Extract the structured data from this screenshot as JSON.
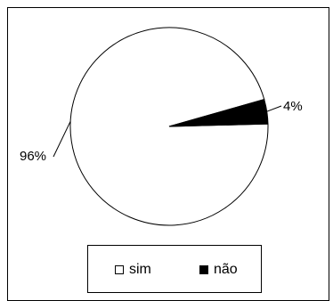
{
  "chart_data": {
    "type": "pie",
    "slices": [
      {
        "label": "sim",
        "value": 96,
        "display": "96%",
        "color": "#ffffff"
      },
      {
        "label": "não",
        "value": 4,
        "display": "4%",
        "color": "#000000"
      }
    ],
    "legend_position": "bottom",
    "border": true
  }
}
